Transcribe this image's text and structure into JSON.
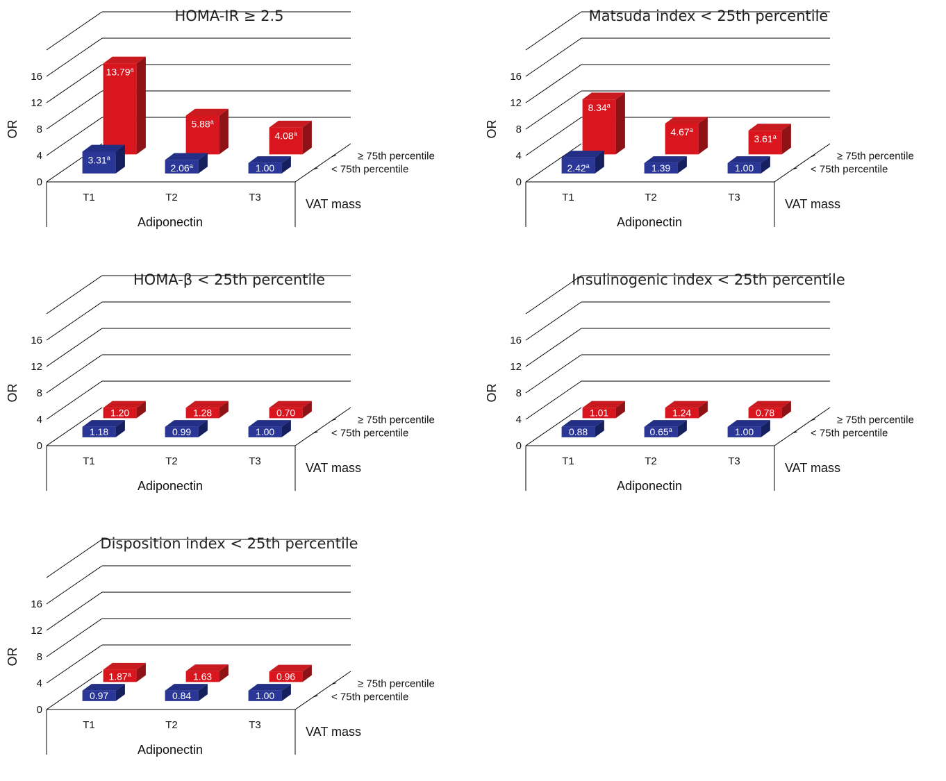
{
  "colors": {
    "red_front": "#d9161e",
    "red_side": "#8f1216",
    "red_top": "#c91a20",
    "blue_front": "#2a3797",
    "blue_side": "#16205f",
    "blue_top": "#232f85",
    "grid": "#000000",
    "text": "#111111"
  },
  "chart_data": [
    {
      "type": "bar",
      "title": "HOMA-IR ≥ 2.5",
      "xlabel": "Adiponectin",
      "ylabel": "OR",
      "depth_label": "VAT mass",
      "categories": [
        "T1",
        "T2",
        "T3"
      ],
      "yticks": [
        "0",
        "4",
        "8",
        "12",
        "16"
      ],
      "ylim": [
        0,
        20
      ],
      "series": [
        {
          "name": "≥ 75th percentile",
          "values": [
            13.79,
            5.88,
            4.08
          ],
          "labels": [
            "13.79",
            "5.88",
            "4.08"
          ],
          "sup": [
            "a",
            "a",
            "a"
          ]
        },
        {
          "name": "< 75th percentile",
          "values": [
            3.31,
            2.06,
            1.0
          ],
          "labels": [
            "3.31",
            "2.06",
            "1.00"
          ],
          "sup": [
            "a",
            "a",
            ""
          ]
        }
      ]
    },
    {
      "type": "bar",
      "title": "Matsuda index < 25th percentile",
      "xlabel": "Adiponectin",
      "ylabel": "OR",
      "depth_label": "VAT mass",
      "categories": [
        "T1",
        "T2",
        "T3"
      ],
      "yticks": [
        "0",
        "4",
        "8",
        "12",
        "16"
      ],
      "ylim": [
        0,
        20
      ],
      "series": [
        {
          "name": "≥ 75th percentile",
          "values": [
            8.34,
            4.67,
            3.61
          ],
          "labels": [
            "8.34",
            "4.67",
            "3.61"
          ],
          "sup": [
            "a",
            "a",
            "a"
          ]
        },
        {
          "name": "< 75th percentile",
          "values": [
            2.42,
            1.39,
            1.0
          ],
          "labels": [
            "2.42",
            "1.39",
            "1.00"
          ],
          "sup": [
            "a",
            "",
            ""
          ]
        }
      ]
    },
    {
      "type": "bar",
      "title": "HOMA-β < 25th percentile",
      "xlabel": "Adiponectin",
      "ylabel": "OR",
      "depth_label": "VAT mass",
      "categories": [
        "T1",
        "T2",
        "T3"
      ],
      "yticks": [
        "0",
        "4",
        "8",
        "12",
        "16"
      ],
      "ylim": [
        0,
        20
      ],
      "series": [
        {
          "name": "≥ 75th percentile",
          "values": [
            1.2,
            1.28,
            0.7
          ],
          "labels": [
            "1.20",
            "1.28",
            "0.70"
          ],
          "sup": [
            "",
            "",
            ""
          ]
        },
        {
          "name": "< 75th percentile",
          "values": [
            1.18,
            0.99,
            1.0
          ],
          "labels": [
            "1.18",
            "0.99",
            "1.00"
          ],
          "sup": [
            "",
            "",
            ""
          ]
        }
      ]
    },
    {
      "type": "bar",
      "title": "Insulinogenic index < 25th percentile",
      "xlabel": "Adiponectin",
      "ylabel": "OR",
      "depth_label": "VAT mass",
      "categories": [
        "T1",
        "T2",
        "T3"
      ],
      "yticks": [
        "0",
        "4",
        "8",
        "12",
        "16"
      ],
      "ylim": [
        0,
        20
      ],
      "series": [
        {
          "name": "≥ 75th percentile",
          "values": [
            1.01,
            1.24,
            0.78
          ],
          "labels": [
            "1.01",
            "1.24",
            "0.78"
          ],
          "sup": [
            "",
            "",
            ""
          ]
        },
        {
          "name": "< 75th percentile",
          "values": [
            0.88,
            0.65,
            1.0
          ],
          "labels": [
            "0.88",
            "0.65",
            "1.00"
          ],
          "sup": [
            "",
            "a",
            ""
          ]
        }
      ]
    },
    {
      "type": "bar",
      "title": "Disposition index < 25th percentile",
      "xlabel": "Adiponectin",
      "ylabel": "OR",
      "depth_label": "VAT mass",
      "categories": [
        "T1",
        "T2",
        "T3"
      ],
      "yticks": [
        "0",
        "4",
        "8",
        "12",
        "16"
      ],
      "ylim": [
        0,
        20
      ],
      "series": [
        {
          "name": "≥ 75th percentile",
          "values": [
            1.87,
            1.63,
            0.96
          ],
          "labels": [
            "1.87",
            "1.63",
            "0.96"
          ],
          "sup": [
            "a",
            "",
            ""
          ]
        },
        {
          "name": "< 75th percentile",
          "values": [
            0.97,
            0.84,
            1.0
          ],
          "labels": [
            "0.97",
            "0.84",
            "1.00"
          ],
          "sup": [
            "",
            "",
            ""
          ]
        }
      ]
    }
  ]
}
